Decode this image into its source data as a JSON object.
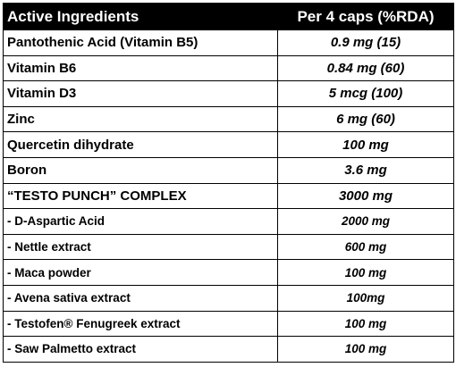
{
  "table": {
    "header": [
      "Active Ingredients",
      "Per 4 caps (%RDA)"
    ],
    "rows": [
      [
        "Pantothenic Acid (Vitamin B5)",
        "0.9 mg (15)"
      ],
      [
        "Vitamin B6",
        "0.84 mg (60)"
      ],
      [
        "Vitamin D3",
        "5 mcg (100)"
      ],
      [
        "Zinc",
        "6 mg (60)"
      ],
      [
        "Quercetin dihydrate",
        "100 mg"
      ],
      [
        "Boron",
        "3.6 mg"
      ],
      [
        "“TESTO PUNCH” COMPLEX",
        "3000 mg"
      ],
      [
        "- D-Aspartic Acid",
        "2000 mg"
      ],
      [
        "- Nettle extract",
        "600 mg"
      ],
      [
        "- Maca powder",
        "100 mg"
      ],
      [
        "- Avena sativa extract",
        "100mg"
      ],
      [
        "- Testofen® Fenugreek extract",
        "100 mg"
      ],
      [
        "- Saw Palmetto extract",
        "100 mg"
      ]
    ]
  }
}
